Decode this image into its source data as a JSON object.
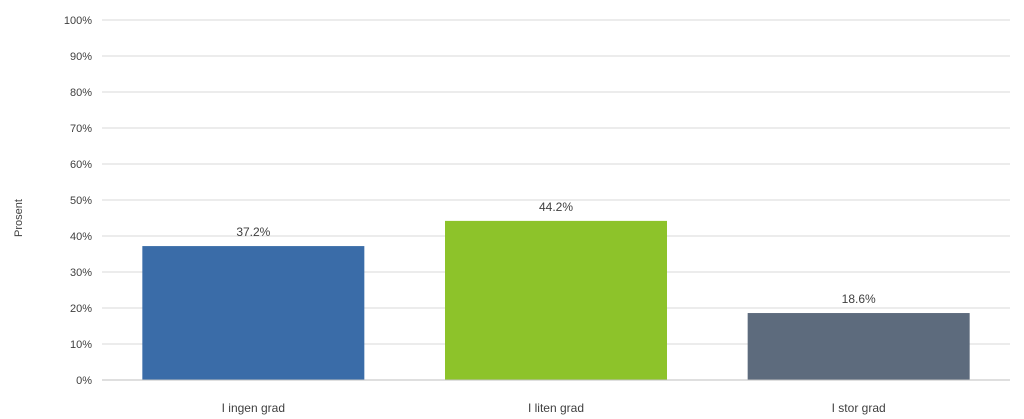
{
  "chart_data": {
    "type": "bar",
    "categories": [
      "I ingen grad",
      "I liten grad",
      "I stor grad"
    ],
    "values": [
      37.2,
      44.2,
      18.6
    ],
    "value_labels": [
      "37.2%",
      "44.2%",
      "18.6%"
    ],
    "bar_colors": [
      "#3a6ca8",
      "#8dc32a",
      "#5d6b7d"
    ],
    "title": "",
    "xlabel": "",
    "ylabel": "Prosent",
    "ylim": [
      0,
      100
    ],
    "yticks": [
      0,
      10,
      20,
      30,
      40,
      50,
      60,
      70,
      80,
      90,
      100
    ],
    "ytick_labels": [
      "0%",
      "10%",
      "20%",
      "30%",
      "40%",
      "50%",
      "60%",
      "70%",
      "80%",
      "90%",
      "100%"
    ],
    "grid": true,
    "legend": "none"
  }
}
